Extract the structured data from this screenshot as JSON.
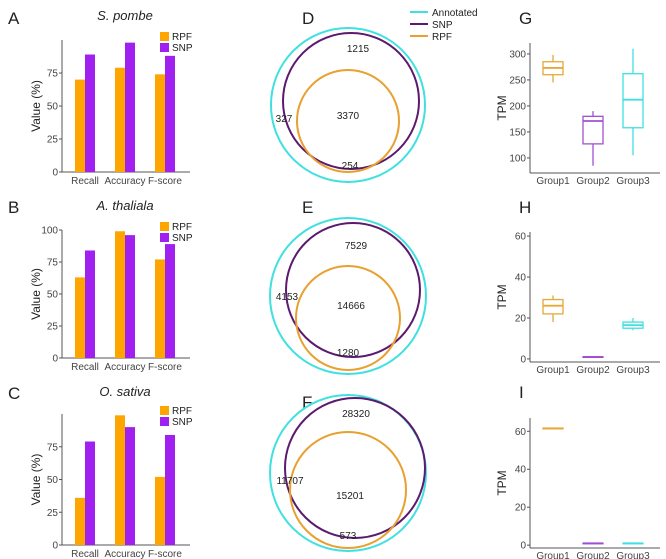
{
  "colors": {
    "rpf_bar": "#FFA500",
    "snp_bar": "#A020F0",
    "venn_annotated": "#40E0E0",
    "venn_snp": "#5C1A6E",
    "venn_rpf": "#E8A030",
    "box_group1": "#E8A838",
    "box_group2": "#A050D0",
    "box_group3": "#40E0E0",
    "axis": "#555555"
  },
  "chart_data": [
    {
      "panel": "A",
      "type": "bar",
      "title": "S. pombe",
      "xlabel": "",
      "ylabel": "Value (%)",
      "ylim": [
        0,
        100
      ],
      "yticks": [
        0,
        25,
        50,
        75
      ],
      "categories": [
        "Recall",
        "Accuracy",
        "F-score"
      ],
      "legend": [
        "RPF",
        "SNP"
      ],
      "legend_position": "top-right",
      "series": [
        {
          "name": "RPF",
          "values": [
            70,
            79,
            74
          ]
        },
        {
          "name": "SNP",
          "values": [
            89,
            98,
            88
          ]
        }
      ]
    },
    {
      "panel": "B",
      "type": "bar",
      "title": "A. thaliala",
      "xlabel": "",
      "ylabel": "Value (%)",
      "ylim": [
        0,
        100
      ],
      "yticks": [
        0,
        25,
        50,
        75,
        100
      ],
      "categories": [
        "Recall",
        "Accuracy",
        "F-score"
      ],
      "legend": [
        "RPF",
        "SNP"
      ],
      "legend_position": "top-right",
      "series": [
        {
          "name": "RPF",
          "values": [
            63,
            99,
            77
          ]
        },
        {
          "name": "SNP",
          "values": [
            84,
            96,
            89
          ]
        }
      ]
    },
    {
      "panel": "C",
      "type": "bar",
      "title": "O. sativa",
      "xlabel": "",
      "ylabel": "Value (%)",
      "ylim": [
        0,
        100
      ],
      "yticks": [
        0,
        25,
        50,
        75
      ],
      "categories": [
        "Recall",
        "Accuracy",
        "F-score"
      ],
      "legend": [
        "RPF",
        "SNP"
      ],
      "legend_position": "top-right",
      "series": [
        {
          "name": "RPF",
          "values": [
            36,
            99,
            52
          ]
        },
        {
          "name": "SNP",
          "values": [
            79,
            90,
            84
          ]
        }
      ]
    },
    {
      "panel": "D",
      "type": "venn",
      "sets": [
        "Annotated",
        "SNP",
        "RPF"
      ],
      "regions": {
        "snp_only": "1215",
        "all_three": "3370",
        "annotated_only": "327",
        "rpf_bottom": "254"
      }
    },
    {
      "panel": "E",
      "type": "venn",
      "sets": [
        "Annotated",
        "SNP",
        "RPF"
      ],
      "regions": {
        "snp_only": "7529",
        "all_three": "14666",
        "annotated_only": "4153",
        "rpf_bottom": "1280"
      }
    },
    {
      "panel": "F",
      "type": "venn",
      "sets": [
        "Annotated",
        "SNP",
        "RPF"
      ],
      "regions": {
        "snp_only": "28320",
        "all_three": "15201",
        "annotated_only": "11707",
        "rpf_bottom": "573"
      }
    },
    {
      "panel": "G",
      "type": "box",
      "ylabel": "TPM",
      "ylim": [
        71,
        321
      ],
      "yticks": [
        100,
        150,
        200,
        250,
        300
      ],
      "categories": [
        "Group1",
        "Group2",
        "Group3"
      ],
      "boxes": [
        {
          "min": 245,
          "q1": 260,
          "median": 273,
          "q3": 285,
          "max": 298
        },
        {
          "min": 85,
          "q1": 127,
          "median": 171,
          "q3": 180,
          "max": 190
        },
        {
          "min": 105,
          "q1": 158,
          "median": 212,
          "q3": 262,
          "max": 310
        }
      ]
    },
    {
      "panel": "H",
      "type": "box",
      "ylabel": "TPM",
      "ylim": [
        -1.5,
        62
      ],
      "yticks": [
        0,
        20,
        40,
        60
      ],
      "categories": [
        "Group1",
        "Group2",
        "Group3"
      ],
      "boxes": [
        {
          "min": 18,
          "q1": 22,
          "median": 26,
          "q3": 29,
          "max": 31
        },
        {
          "min": 1,
          "q1": 1,
          "median": 1,
          "q3": 1,
          "max": 1
        },
        {
          "min": 14,
          "q1": 15,
          "median": 16.5,
          "q3": 18,
          "max": 20
        }
      ]
    },
    {
      "panel": "I",
      "type": "box",
      "ylabel": "TPM",
      "ylim": [
        -1.5,
        67
      ],
      "yticks": [
        0,
        20,
        40,
        60
      ],
      "categories": [
        "Group1",
        "Group2",
        "Group3"
      ],
      "boxes": [
        {
          "min": 61,
          "q1": 61.3,
          "median": 61.5,
          "q3": 61.7,
          "max": 62
        },
        {
          "min": 1,
          "q1": 1,
          "median": 1,
          "q3": 1,
          "max": 1
        },
        {
          "min": 1,
          "q1": 1,
          "median": 1,
          "q3": 1,
          "max": 1
        }
      ]
    }
  ]
}
